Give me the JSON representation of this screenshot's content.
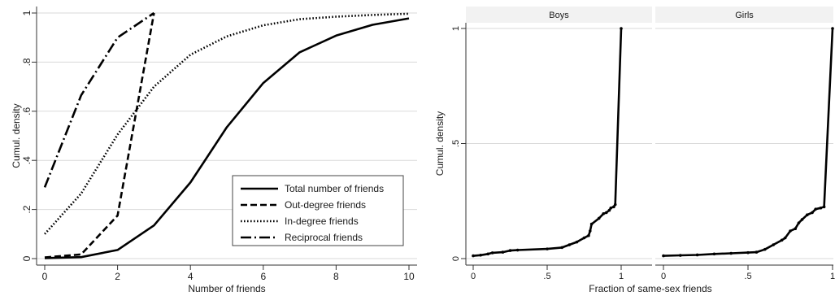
{
  "chart_data": [
    {
      "type": "line",
      "title": "",
      "xlabel": "Number of friends",
      "ylabel": "Cumul. density",
      "xlim": [
        0,
        10
      ],
      "ylim": [
        0,
        1
      ],
      "x_ticks": [
        0,
        2,
        4,
        6,
        8,
        10
      ],
      "x_tick_labels": [
        "0",
        "2",
        "4",
        "6",
        "8",
        "10"
      ],
      "y_ticks": [
        0,
        0.2,
        0.4,
        0.6,
        0.8,
        1
      ],
      "y_tick_labels": [
        "0",
        ".2",
        ".4",
        ".6",
        ".8",
        "1"
      ],
      "grid": true,
      "legend_position": "bottom-right",
      "series": [
        {
          "name": "Total number of friends",
          "style": "solid",
          "x": [
            0,
            1,
            2,
            3,
            4,
            5,
            6,
            7,
            8,
            9,
            10
          ],
          "y": [
            0.002,
            0.006,
            0.035,
            0.135,
            0.31,
            0.535,
            0.715,
            0.84,
            0.908,
            0.952,
            0.978
          ]
        },
        {
          "name": "Out-degree friends",
          "style": "dashed",
          "x": [
            0,
            1,
            2,
            3
          ],
          "y": [
            0.005,
            0.017,
            0.175,
            1.0
          ]
        },
        {
          "name": "In-degree friends",
          "style": "dotted",
          "x": [
            0,
            1,
            2,
            3,
            4,
            5,
            6,
            7,
            8,
            9,
            10
          ],
          "y": [
            0.1,
            0.265,
            0.505,
            0.7,
            0.83,
            0.905,
            0.95,
            0.975,
            0.985,
            0.992,
            0.997
          ]
        },
        {
          "name": "Reciprocal friends",
          "style": "dashdot",
          "x": [
            0,
            1,
            2,
            3
          ],
          "y": [
            0.29,
            0.665,
            0.9,
            1.0
          ]
        }
      ]
    },
    {
      "type": "line",
      "title": "",
      "xlabel": "Fraction of same-sex friends",
      "ylabel": "Cumul. density",
      "xlim": [
        0,
        1
      ],
      "ylim": [
        0,
        1
      ],
      "x_ticks": [
        0,
        0.5,
        1
      ],
      "x_tick_labels": [
        "0",
        ".5",
        "1"
      ],
      "y_ticks": [
        0,
        0.5,
        1
      ],
      "y_tick_labels": [
        "0",
        ".5",
        "1"
      ],
      "grid": true,
      "panels": [
        {
          "title": "Boys",
          "x": [
            0,
            0.05,
            0.1,
            0.13,
            0.2,
            0.25,
            0.3,
            0.5,
            0.6,
            0.65,
            0.7,
            0.75,
            0.78,
            0.79,
            0.8,
            0.85,
            0.88,
            0.9,
            0.92,
            0.93,
            0.95,
            0.96,
            1.0
          ],
          "y": [
            0.012,
            0.015,
            0.02,
            0.025,
            0.028,
            0.035,
            0.037,
            0.042,
            0.048,
            0.06,
            0.072,
            0.09,
            0.1,
            0.12,
            0.15,
            0.175,
            0.195,
            0.2,
            0.21,
            0.22,
            0.225,
            0.235,
            1.0
          ]
        },
        {
          "title": "Girls",
          "x": [
            0,
            0.1,
            0.2,
            0.3,
            0.4,
            0.5,
            0.55,
            0.6,
            0.65,
            0.7,
            0.72,
            0.75,
            0.78,
            0.8,
            0.82,
            0.85,
            0.88,
            0.9,
            0.93,
            0.95,
            1.0
          ],
          "y": [
            0.012,
            0.014,
            0.016,
            0.02,
            0.023,
            0.026,
            0.028,
            0.04,
            0.06,
            0.08,
            0.09,
            0.12,
            0.13,
            0.155,
            0.17,
            0.19,
            0.2,
            0.215,
            0.22,
            0.225,
            1.0
          ]
        }
      ]
    }
  ]
}
